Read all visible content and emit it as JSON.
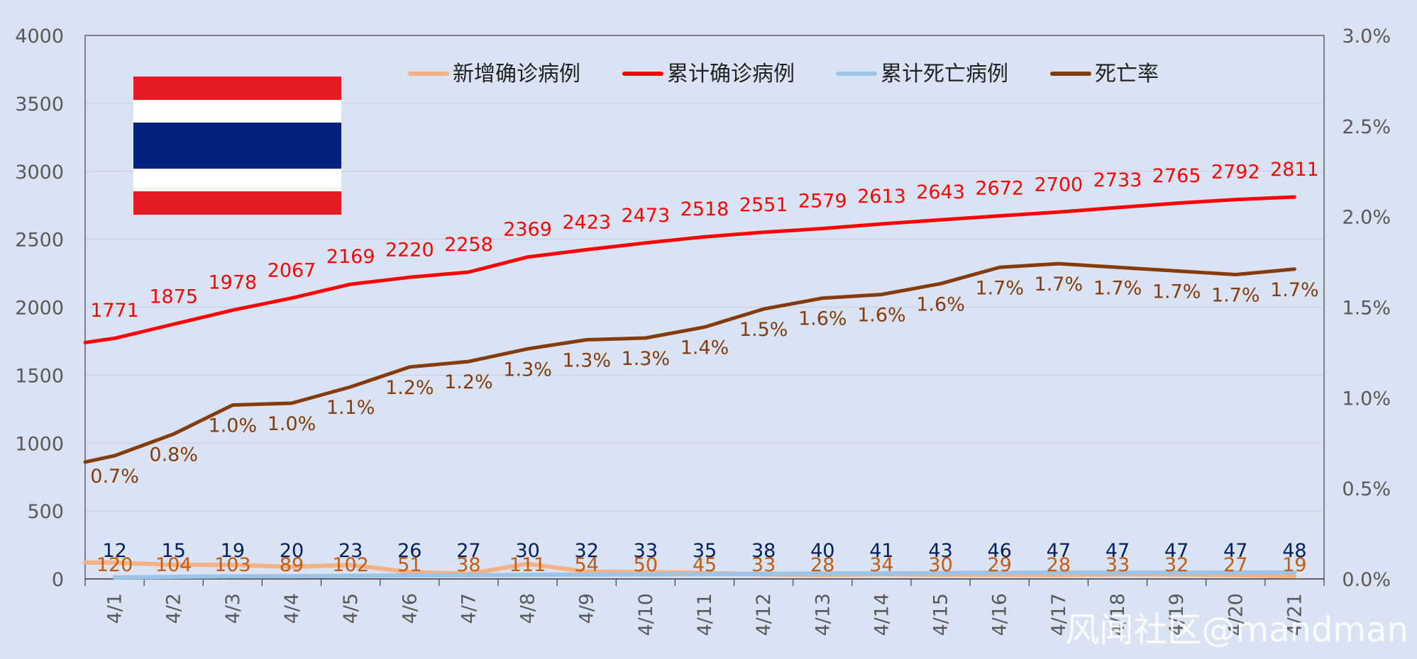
{
  "chart_data": {
    "type": "line",
    "categories": [
      "4/1",
      "4/2",
      "4/3",
      "4/4",
      "4/5",
      "4/6",
      "4/7",
      "4/8",
      "4/9",
      "4/10",
      "4/11",
      "4/12",
      "4/13",
      "4/14",
      "4/15",
      "4/16",
      "4/17",
      "4/18",
      "4/19",
      "4/20",
      "4/21"
    ],
    "left_axis": {
      "min": 0,
      "max": 4000,
      "step": 500,
      "ticks": [
        "0",
        "500",
        "1000",
        "1500",
        "2000",
        "2500",
        "3000",
        "3500",
        "4000"
      ]
    },
    "right_axis": {
      "min": 0,
      "max": 0.03,
      "ticks": [
        "0.0%",
        "0.5%",
        "1.0%",
        "1.5%",
        "2.0%",
        "2.5%",
        "3.0%"
      ]
    },
    "gridlines": true,
    "legend_position": "top-center",
    "series": [
      {
        "name": "新增确诊病例",
        "color": "#f4b183",
        "label_color": "#c55a11",
        "axis": "left",
        "values": [
          120,
          104,
          103,
          89,
          102,
          51,
          38,
          111,
          54,
          50,
          45,
          33,
          28,
          34,
          30,
          29,
          28,
          33,
          32,
          27,
          19
        ],
        "labels": [
          "120",
          "104",
          "103",
          "89",
          "102",
          "51",
          "38",
          "111",
          "54",
          "50",
          "45",
          "33",
          "28",
          "34",
          "30",
          "29",
          "28",
          "33",
          "32",
          "27",
          "19"
        ]
      },
      {
        "name": "累计确诊病例",
        "color": "#ff0000",
        "label_color": "#ff0000",
        "axis": "left",
        "values": [
          1771,
          1875,
          1978,
          2067,
          2169,
          2220,
          2258,
          2369,
          2423,
          2473,
          2518,
          2551,
          2579,
          2613,
          2643,
          2672,
          2700,
          2733,
          2765,
          2792,
          2811
        ],
        "labels": [
          "1771",
          "1875",
          "1978",
          "2067",
          "2169",
          "2220",
          "2258",
          "2369",
          "2423",
          "2473",
          "2518",
          "2551",
          "2579",
          "2613",
          "2643",
          "2672",
          "2700",
          "2733",
          "2765",
          "2792",
          "2811"
        ]
      },
      {
        "name": "累计死亡病例",
        "color": "#9dc3e6",
        "label_color": "#002060",
        "axis": "left",
        "values": [
          12,
          15,
          19,
          20,
          23,
          26,
          27,
          30,
          32,
          33,
          35,
          38,
          40,
          41,
          43,
          46,
          47,
          47,
          47,
          47,
          48
        ],
        "labels": [
          "12",
          "15",
          "19",
          "20",
          "23",
          "26",
          "27",
          "30",
          "32",
          "33",
          "35",
          "38",
          "40",
          "41",
          "43",
          "46",
          "47",
          "47",
          "47",
          "47",
          "48"
        ]
      },
      {
        "name": "死亡率",
        "color": "#843c0c",
        "label_color": "#843c0c",
        "axis": "right",
        "values": [
          0.0068,
          0.008,
          0.0096,
          0.0097,
          0.0106,
          0.0117,
          0.012,
          0.0127,
          0.0132,
          0.0133,
          0.0139,
          0.0149,
          0.0155,
          0.0157,
          0.0163,
          0.0172,
          0.0174,
          0.0172,
          0.017,
          0.0168,
          0.0171
        ],
        "labels": [
          "0.7%",
          "0.8%",
          "1.0%",
          "1.0%",
          "1.1%",
          "1.2%",
          "1.2%",
          "1.3%",
          "1.3%",
          "1.3%",
          "1.4%",
          "1.5%",
          "1.6%",
          "1.6%",
          "1.6%",
          "1.7%",
          "1.7%",
          "1.7%",
          "1.7%",
          "1.7%",
          "1.7%"
        ]
      }
    ],
    "watermark": "风闻社区@mandman"
  },
  "flag": {
    "name": "Thailand flag",
    "colors": [
      "#e31b23",
      "#ffffff",
      "#00247d"
    ]
  }
}
